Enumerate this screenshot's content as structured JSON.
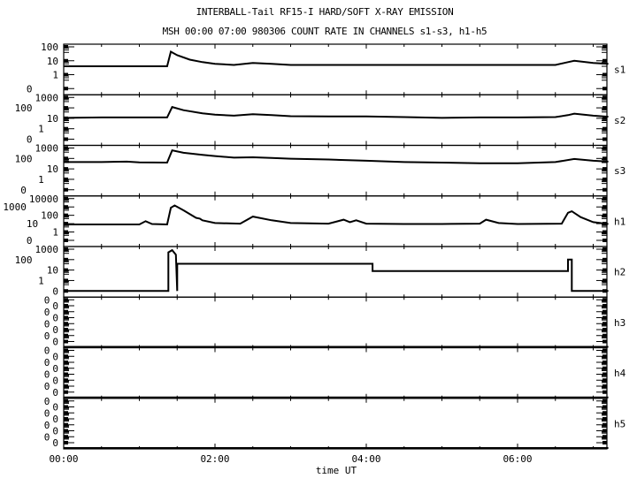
{
  "chart_data": {
    "type": "line",
    "title": "INTERBALL-Tail RF15-I HARD/SOFT X-RAY EMISSION",
    "subtitle": "MSH 00:00 07:00 980306  COUNT RATE IN CHANNELS s1-s3, h1-h5",
    "xlabel": "time UT",
    "x_ticks": [
      "00:00",
      "02:00",
      "04:00",
      "06:00"
    ],
    "x_range": [
      "00:00",
      "07:12"
    ],
    "x_minor_tick_interval_min": 30,
    "y_scale": "log",
    "grid": false,
    "colors": {
      "line": "#000000",
      "background": "#ffffff"
    },
    "panels": [
      {
        "name": "s1",
        "y_ticks": [
          "100",
          "10",
          "1",
          "0"
        ],
        "points": [
          [
            "00:00",
            4
          ],
          [
            "00:30",
            4
          ],
          [
            "01:00",
            4
          ],
          [
            "01:22",
            4
          ],
          [
            "01:25",
            45
          ],
          [
            "01:30",
            25
          ],
          [
            "01:40",
            12
          ],
          [
            "01:50",
            8
          ],
          [
            "02:00",
            6
          ],
          [
            "02:15",
            5
          ],
          [
            "02:30",
            7
          ],
          [
            "02:45",
            6
          ],
          [
            "03:00",
            5
          ],
          [
            "03:30",
            5
          ],
          [
            "04:00",
            5
          ],
          [
            "04:30",
            5
          ],
          [
            "05:00",
            5
          ],
          [
            "05:30",
            5
          ],
          [
            "06:00",
            5
          ],
          [
            "06:30",
            5
          ],
          [
            "06:40",
            8
          ],
          [
            "06:45",
            10
          ],
          [
            "07:00",
            7
          ],
          [
            "07:12",
            6
          ]
        ]
      },
      {
        "name": "s2",
        "y_ticks": [
          "1000",
          "100",
          "10",
          "1",
          "0"
        ],
        "points": [
          [
            "00:00",
            11
          ],
          [
            "00:30",
            12
          ],
          [
            "01:00",
            12
          ],
          [
            "01:22",
            12
          ],
          [
            "01:26",
            120
          ],
          [
            "01:35",
            60
          ],
          [
            "01:50",
            30
          ],
          [
            "02:00",
            22
          ],
          [
            "02:15",
            18
          ],
          [
            "02:30",
            25
          ],
          [
            "02:45",
            20
          ],
          [
            "03:00",
            16
          ],
          [
            "03:30",
            15
          ],
          [
            "04:00",
            15
          ],
          [
            "04:30",
            13
          ],
          [
            "05:00",
            11
          ],
          [
            "05:30",
            12
          ],
          [
            "06:00",
            12
          ],
          [
            "06:30",
            13
          ],
          [
            "06:40",
            20
          ],
          [
            "06:45",
            28
          ],
          [
            "07:00",
            18
          ],
          [
            "07:12",
            14
          ]
        ]
      },
      {
        "name": "s3",
        "y_ticks": [
          "1000",
          "100",
          "10",
          "1",
          "0"
        ],
        "points": [
          [
            "00:00",
            45
          ],
          [
            "00:30",
            45
          ],
          [
            "00:50",
            50
          ],
          [
            "01:00",
            42
          ],
          [
            "01:22",
            40
          ],
          [
            "01:26",
            600
          ],
          [
            "01:35",
            350
          ],
          [
            "01:50",
            220
          ],
          [
            "02:00",
            170
          ],
          [
            "02:15",
            120
          ],
          [
            "02:30",
            130
          ],
          [
            "02:45",
            110
          ],
          [
            "03:00",
            95
          ],
          [
            "03:30",
            80
          ],
          [
            "04:00",
            60
          ],
          [
            "04:30",
            45
          ],
          [
            "05:00",
            40
          ],
          [
            "05:30",
            35
          ],
          [
            "06:00",
            35
          ],
          [
            "06:30",
            45
          ],
          [
            "06:45",
            90
          ],
          [
            "07:00",
            60
          ],
          [
            "07:12",
            50
          ]
        ]
      },
      {
        "name": "h1",
        "y_ticks": [
          "10000",
          "1000",
          "100",
          "10",
          "1",
          "0"
        ],
        "points": [
          [
            "00:00",
            8
          ],
          [
            "00:30",
            8
          ],
          [
            "01:00",
            8
          ],
          [
            "01:05",
            20
          ],
          [
            "01:10",
            9
          ],
          [
            "01:22",
            8
          ],
          [
            "01:25",
            800
          ],
          [
            "01:28",
            1500
          ],
          [
            "01:35",
            400
          ],
          [
            "01:45",
            50
          ],
          [
            "01:48",
            40
          ],
          [
            "01:50",
            25
          ],
          [
            "02:00",
            12
          ],
          [
            "02:20",
            10
          ],
          [
            "02:30",
            70
          ],
          [
            "02:45",
            25
          ],
          [
            "03:00",
            12
          ],
          [
            "03:30",
            10
          ],
          [
            "03:42",
            30
          ],
          [
            "03:47",
            15
          ],
          [
            "03:52",
            25
          ],
          [
            "04:00",
            10
          ],
          [
            "04:30",
            9
          ],
          [
            "05:00",
            9
          ],
          [
            "05:30",
            10
          ],
          [
            "05:35",
            30
          ],
          [
            "05:45",
            12
          ],
          [
            "06:00",
            9
          ],
          [
            "06:35",
            10
          ],
          [
            "06:40",
            200
          ],
          [
            "06:43",
            300
          ],
          [
            "06:50",
            60
          ],
          [
            "07:00",
            15
          ],
          [
            "07:12",
            9
          ]
        ]
      },
      {
        "name": "h2",
        "y_ticks": [
          "1000",
          "100",
          "10",
          "1",
          "0"
        ],
        "points": [
          [
            "00:00",
            0
          ],
          [
            "01:23",
            0
          ],
          [
            "01:23",
            500
          ],
          [
            "01:26",
            800
          ],
          [
            "01:29",
            300
          ],
          [
            "01:30",
            0
          ],
          [
            "01:30",
            40
          ],
          [
            "04:05",
            40
          ],
          [
            "04:05",
            8
          ],
          [
            "06:40",
            8
          ],
          [
            "06:40",
            100
          ],
          [
            "06:43",
            100
          ],
          [
            "06:43",
            0
          ],
          [
            "07:12",
            0
          ]
        ]
      },
      {
        "name": "h3",
        "y_ticks": [
          "0",
          "0",
          "0",
          "0",
          "0",
          "0",
          "0",
          "0"
        ],
        "points": [
          [
            "00:00",
            0
          ],
          [
            "07:12",
            0
          ]
        ]
      },
      {
        "name": "h4",
        "y_ticks": [
          "0",
          "0",
          "0",
          "0",
          "0",
          "0",
          "0",
          "0"
        ],
        "points": [
          [
            "00:00",
            0
          ],
          [
            "07:12",
            0
          ]
        ]
      },
      {
        "name": "h5",
        "y_ticks": [
          "0",
          "0",
          "0",
          "0",
          "0",
          "0",
          "0",
          "0"
        ],
        "points": [
          [
            "00:00",
            0
          ],
          [
            "07:12",
            0
          ]
        ]
      }
    ]
  }
}
